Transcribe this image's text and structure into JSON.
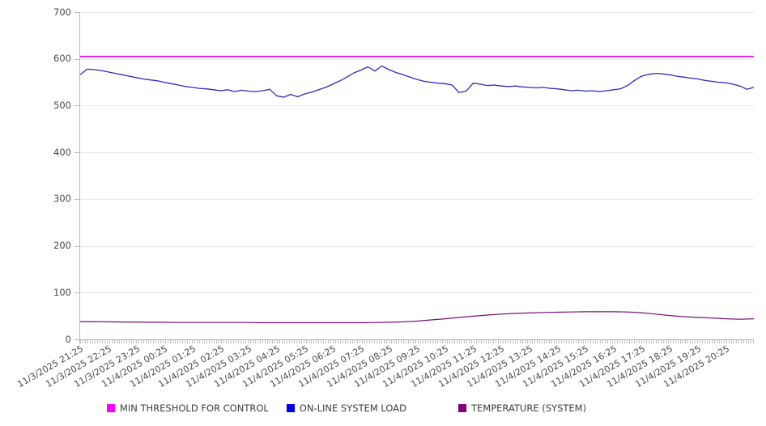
{
  "chart_data": {
    "type": "line",
    "title": "",
    "xlabel": "",
    "ylabel": "",
    "ylim": [
      0,
      700
    ],
    "y_ticks": [
      700,
      600,
      500,
      400,
      300,
      200,
      100,
      0
    ],
    "grid": true,
    "legend_position": "bottom",
    "x_span_hours": 24,
    "x_labels": [
      "11/3/2025 21:25",
      "11/3/2025 22:25",
      "11/3/2025 23:25",
      "11/4/2025 00:25",
      "11/4/2025 01:25",
      "11/4/2025 02:25",
      "11/4/2025 03:25",
      "11/4/2025 04:25",
      "11/4/2025 05:25",
      "11/4/2025 06:25",
      "11/4/2025 07:25",
      "11/4/2025 08:25",
      "11/4/2025 09:25",
      "11/4/2025 10:25",
      "11/4/2025 11:25",
      "11/4/2025 12:25",
      "11/4/2025 13:25",
      "11/4/2025 14:25",
      "11/4/2025 15:25",
      "11/4/2025 16:25",
      "11/4/2025 17:25",
      "11/4/2025 18:25",
      "11/4/2025 19:25",
      "11/4/2025 20:25"
    ],
    "series": [
      {
        "name": "MIN THRESHOLD FOR CONTROL",
        "swatch_color": "#fb00fb",
        "line_color": "#e41ee4",
        "line_width": 1.8,
        "step_hours": 24,
        "values": [
          605,
          605
        ]
      },
      {
        "name": "ON-LINE SYSTEM LOAD",
        "swatch_color": "#0000ee",
        "line_color": "#2b2bc7",
        "line_width": 1.3,
        "step_hours": 0.25,
        "values": [
          566,
          578,
          577,
          575,
          572,
          569,
          566,
          563,
          560,
          557,
          555,
          553,
          550,
          547,
          544,
          541,
          539,
          537,
          536,
          534,
          532,
          534,
          530,
          533,
          531,
          530,
          532,
          535,
          521,
          518,
          524,
          519,
          525,
          529,
          534,
          539,
          546,
          553,
          561,
          570,
          576,
          583,
          574,
          585,
          577,
          571,
          566,
          561,
          556,
          552,
          550,
          548,
          547,
          544,
          528,
          531,
          548,
          546,
          543,
          544,
          542,
          541,
          542,
          540,
          539,
          538,
          539,
          537,
          536,
          534,
          532,
          533,
          531,
          532,
          530,
          532,
          534,
          536,
          543,
          554,
          563,
          567,
          569,
          568,
          566,
          563,
          561,
          559,
          557,
          554,
          552,
          550,
          549,
          546,
          542,
          535,
          539
        ]
      },
      {
        "name": "TEMPERATURE (SYSTEM)",
        "swatch_color": "#800080",
        "line_color": "#750f75",
        "line_width": 1.2,
        "step_hours": 0.5,
        "values": [
          38,
          38,
          37.5,
          37,
          37,
          36.5,
          36.5,
          36,
          36,
          36,
          36,
          36,
          36,
          35.5,
          35.5,
          35.5,
          35.5,
          35.5,
          35.5,
          35.5,
          35.5,
          36,
          36.5,
          37.5,
          39,
          41.5,
          44,
          47,
          49.5,
          52,
          54,
          55.5,
          56.5,
          57.5,
          58,
          58.5,
          59,
          59,
          59,
          58.5,
          57,
          54,
          51,
          48.5,
          47,
          45.5,
          44,
          43,
          44
        ]
      }
    ],
    "colors": {
      "axis": "#b9b9b9",
      "grid": "#e7e7e7",
      "tick_label": "#4b4b4b",
      "legend_text": "#3d3d3d",
      "background": "#ffffff"
    }
  }
}
